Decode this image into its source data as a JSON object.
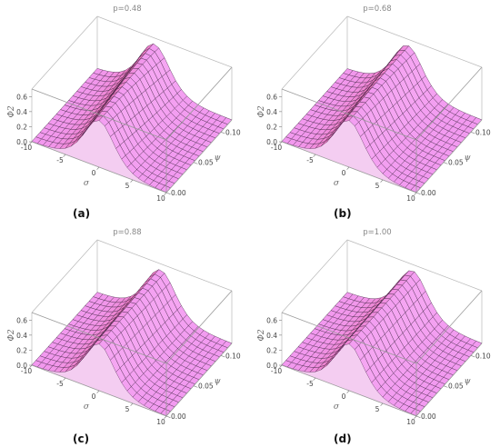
{
  "chart_data": [
    {
      "type": "surface",
      "title": "p=0.48",
      "panel_label": "(a)",
      "z_label": "Φ2",
      "x_label": "σ",
      "y_label": "ψ",
      "x_ticks": [
        "-10",
        "-5",
        "0",
        "5",
        "10"
      ],
      "y_ticks": [
        "0.00",
        "0.05",
        "0.10"
      ],
      "z_ticks": [
        "0.0",
        "0.2",
        "0.4",
        "0.6"
      ],
      "x_range": [
        -10,
        10
      ],
      "y_range": [
        0.0,
        0.12
      ],
      "z_range": [
        0.0,
        0.7
      ],
      "peak_sigma_start": 0,
      "peak_sigma_end": -1.5,
      "peak_height": 0.62,
      "surface_color": "#f29af0",
      "edge_color": "#e0305a"
    },
    {
      "type": "surface",
      "title": "p=0.68",
      "panel_label": "(b)",
      "z_label": "Φ2",
      "x_label": "σ",
      "y_label": "ψ",
      "x_ticks": [
        "-10",
        "-5",
        "0",
        "5",
        "10"
      ],
      "y_ticks": [
        "0.00",
        "0.05",
        "0.10"
      ],
      "z_ticks": [
        "0.0",
        "0.2",
        "0.4",
        "0.6"
      ],
      "x_range": [
        -10,
        10
      ],
      "y_range": [
        0.0,
        0.12
      ],
      "z_range": [
        0.0,
        0.7
      ],
      "peak_sigma_start": 0,
      "peak_sigma_end": -1.0,
      "peak_height": 0.62,
      "surface_color": "#f29af0",
      "edge_color": "#e0305a"
    },
    {
      "type": "surface",
      "title": "p=0.88",
      "panel_label": "(c)",
      "z_label": "Φ2",
      "x_label": "σ",
      "y_label": "ψ",
      "x_ticks": [
        "-10",
        "-5",
        "0",
        "5",
        "10"
      ],
      "y_ticks": [
        "0.00",
        "0.05",
        "0.10"
      ],
      "z_ticks": [
        "0.0",
        "0.2",
        "0.4",
        "0.6"
      ],
      "x_range": [
        -10,
        10
      ],
      "y_range": [
        0.0,
        0.12
      ],
      "z_range": [
        0.0,
        0.7
      ],
      "peak_sigma_start": 0,
      "peak_sigma_end": -0.6,
      "peak_height": 0.62,
      "surface_color": "#f29af0",
      "edge_color": "#e0305a"
    },
    {
      "type": "surface",
      "title": "p=1.00",
      "panel_label": "(d)",
      "z_label": "Φ2",
      "x_label": "σ",
      "y_label": "ψ",
      "x_ticks": [
        "-10",
        "-5",
        "0",
        "5",
        "10"
      ],
      "y_ticks": [
        "0.00",
        "0.05",
        "0.10"
      ],
      "z_ticks": [
        "0.0",
        "0.2",
        "0.4",
        "0.6"
      ],
      "x_range": [
        -10,
        10
      ],
      "y_range": [
        0.0,
        0.12
      ],
      "z_range": [
        0.0,
        0.7
      ],
      "peak_sigma_start": 0,
      "peak_sigma_end": -0.3,
      "peak_height": 0.62,
      "surface_color": "#f29af0",
      "edge_color": "#e0305a"
    }
  ]
}
